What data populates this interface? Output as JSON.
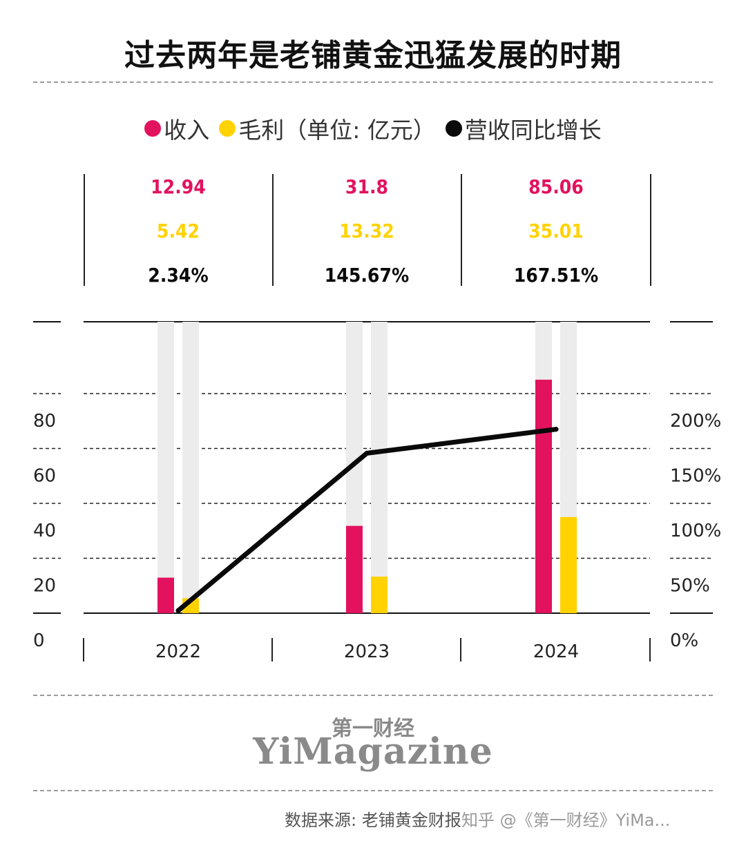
{
  "title": "过去两年是老铺黄金迅猛发展的时期",
  "legend": {
    "revenue_label": "收入",
    "profit_label": "毛利（单位: 亿元）",
    "growth_label": "营收同比增长"
  },
  "colors": {
    "revenue": "#e2125f",
    "profit": "#ffd200",
    "growth": "#0a0a0a",
    "track": "#ececec"
  },
  "chart_data": {
    "type": "bar",
    "title": "过去两年是老铺黄金迅猛发展的时期",
    "categories": [
      "2022",
      "2023",
      "2024"
    ],
    "series": [
      {
        "name": "收入",
        "type": "bar",
        "axis": "left",
        "values": [
          12.94,
          31.8,
          85.06
        ],
        "labels": [
          "12.94",
          "31.8",
          "85.06"
        ]
      },
      {
        "name": "毛利",
        "type": "bar",
        "axis": "left",
        "values": [
          5.42,
          13.32,
          35.01
        ],
        "labels": [
          "5.42",
          "13.32",
          "35.01"
        ]
      },
      {
        "name": "营收同比增长",
        "type": "line",
        "axis": "right",
        "values": [
          2.34,
          145.67,
          167.51
        ],
        "labels": [
          "2.34%",
          "145.67%",
          "167.51%"
        ]
      }
    ],
    "left_axis": {
      "ticks": [
        "0",
        "20",
        "40",
        "60",
        "80"
      ],
      "ylim": [
        0,
        80
      ]
    },
    "right_axis": {
      "ticks": [
        "0%",
        "50%",
        "100%",
        "150%",
        "200%"
      ],
      "ylim": [
        0,
        200
      ]
    },
    "grid": true,
    "legend_position": "top"
  },
  "footer": {
    "logo_cn": "第一财经",
    "logo_en": "YiMagazine",
    "source": "数据来源: 老铺黄金财报",
    "watermark": "知乎 @《第一财经》YiMa..."
  }
}
